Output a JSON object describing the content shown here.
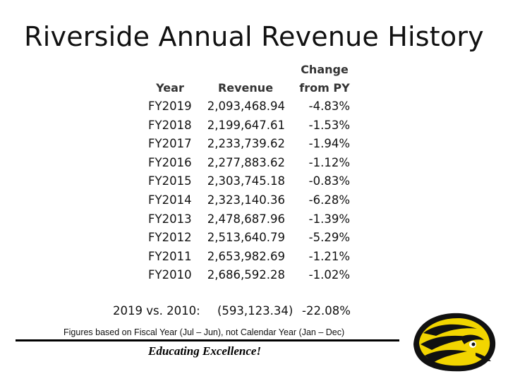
{
  "title": "Riverside Annual Revenue History",
  "table": {
    "headers": {
      "year": "Year",
      "revenue": "Revenue",
      "change_line1": "Change",
      "change_line2": "from PY"
    },
    "rows": [
      {
        "year": "FY2019",
        "revenue": "2,093,468.94",
        "change": "-4.83%"
      },
      {
        "year": "FY2018",
        "revenue": "2,199,647.61",
        "change": "-1.53%"
      },
      {
        "year": "FY2017",
        "revenue": "2,233,739.62",
        "change": "-1.94%"
      },
      {
        "year": "FY2016",
        "revenue": "2,277,883.62",
        "change": "-1.12%"
      },
      {
        "year": "FY2015",
        "revenue": "2,303,745.18",
        "change": "-0.83%"
      },
      {
        "year": "FY2014",
        "revenue": "2,323,140.36",
        "change": "-6.28%"
      },
      {
        "year": "FY2013",
        "revenue": "2,478,687.96",
        "change": "-1.39%"
      },
      {
        "year": "FY2012",
        "revenue": "2,513,640.79",
        "change": "-5.29%"
      },
      {
        "year": "FY2011",
        "revenue": "2,653,982.69",
        "change": "-1.21%"
      },
      {
        "year": "FY2010",
        "revenue": "2,686,592.28",
        "change": "-1.02%"
      }
    ]
  },
  "summary": {
    "label": "2019 vs. 2010:",
    "difference": "(593,123.34)",
    "percent": "-22.08%"
  },
  "footnote": "Figures based on Fiscal Year (Jul – Jun), not Calendar Year (Jan – Dec)",
  "motto": "Educating Excellence!",
  "logo": {
    "icon": "yellow-jacket-mascot-icon",
    "primary_color": "#F2D500",
    "outline_color": "#111111"
  }
}
